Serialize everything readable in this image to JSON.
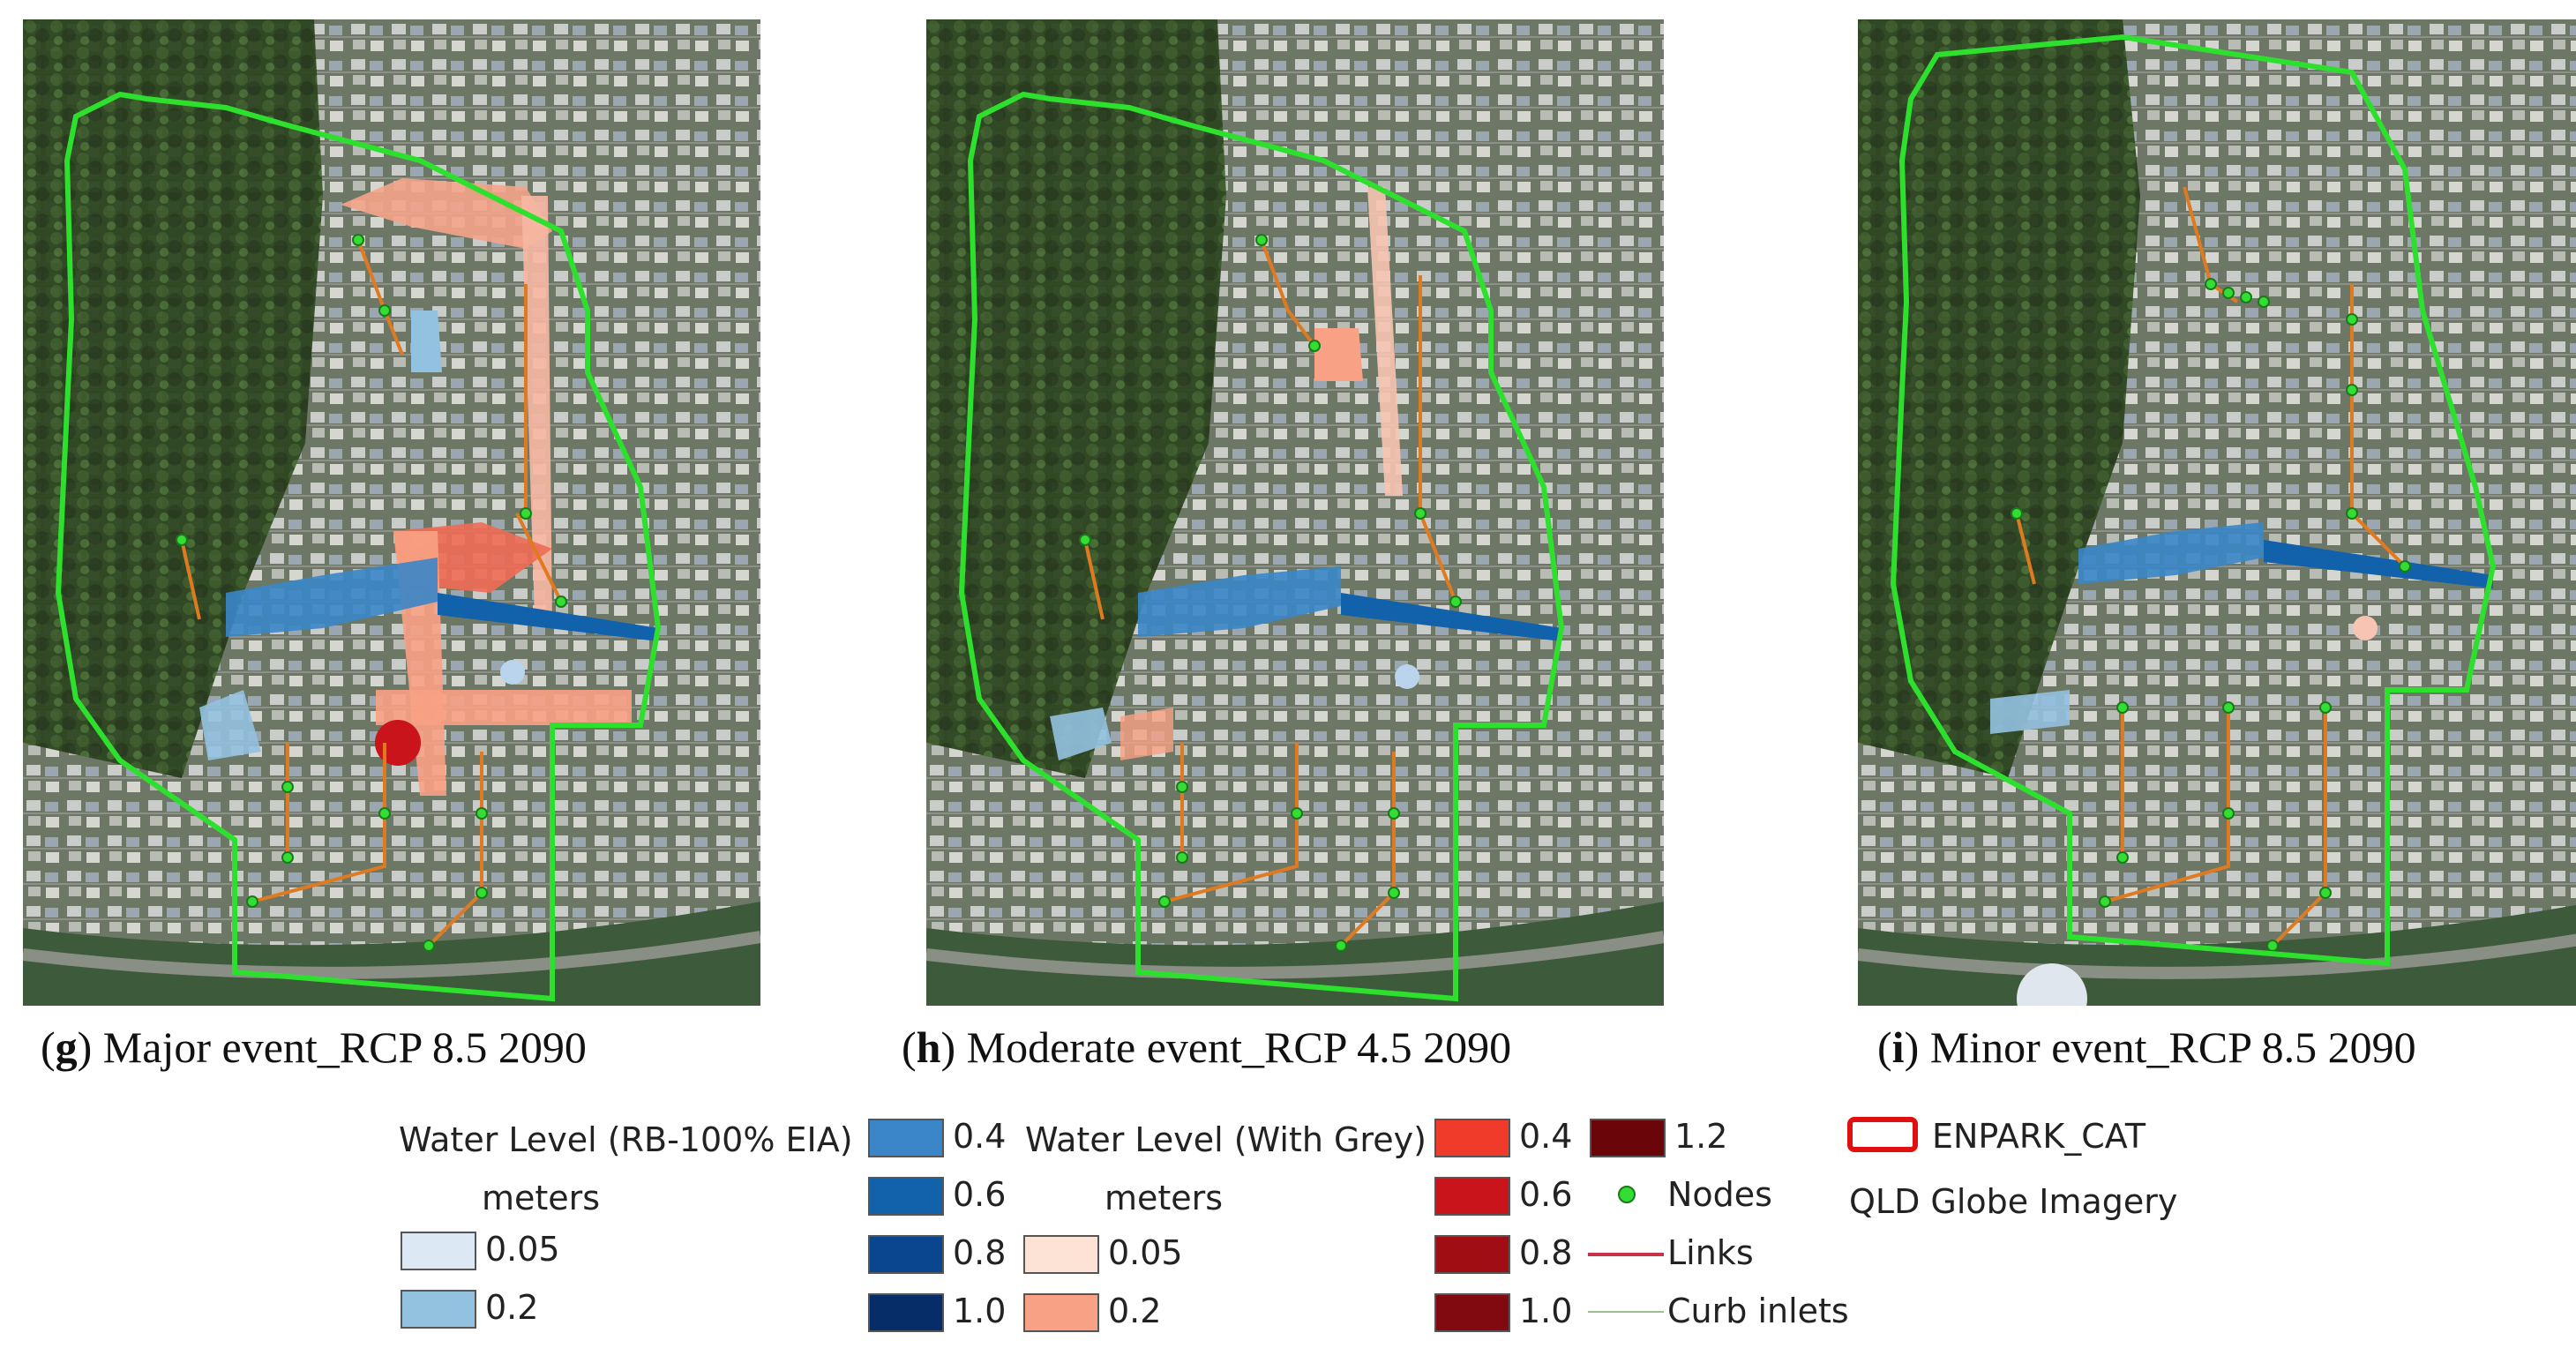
{
  "panels": [
    {
      "letter": "g",
      "text": ") Major event_RCP 8.5 2090"
    },
    {
      "letter": "h",
      "text": ") Moderate event_RCP 4.5 2090"
    },
    {
      "letter": "i",
      "text": ") Minor event_RCP 8.5 2090"
    }
  ],
  "legend": {
    "blue_title": "Water Level (RB-100% EIA)",
    "blue_unit": "meters",
    "blue_classes": [
      {
        "label": "0.05",
        "color": "#dde8f5"
      },
      {
        "label": "0.2",
        "color": "#93c1e0"
      },
      {
        "label": "0.4",
        "color": "#3a86c8"
      },
      {
        "label": "0.6",
        "color": "#1261ab"
      },
      {
        "label": "0.8",
        "color": "#0a468f"
      },
      {
        "label": "1.0",
        "color": "#072d68"
      }
    ],
    "red_title": "Water Level (With Grey)",
    "red_unit": "meters",
    "red_classes": [
      {
        "label": "0.05",
        "color": "#fde3d6"
      },
      {
        "label": "0.2",
        "color": "#f9a184"
      },
      {
        "label": "0.4",
        "color": "#f03a2a"
      },
      {
        "label": "0.6",
        "color": "#c8141a"
      },
      {
        "label": "0.8",
        "color": "#a00e14"
      },
      {
        "label": "1.0",
        "color": "#800a10"
      },
      {
        "label": "1.2",
        "color": "#6a050a"
      }
    ],
    "nodes_label": "Nodes",
    "links_label": "Links",
    "curb_label": "Curb inlets",
    "catchment_label": "ENPARK_CAT",
    "imagery_label": "QLD Globe Imagery"
  },
  "colors": {
    "boundary": "#2ee02e",
    "links": "#e07a20",
    "nodes": "#33dd33",
    "vegetation": "#2f4a22",
    "urban": "#6f7a6a"
  }
}
